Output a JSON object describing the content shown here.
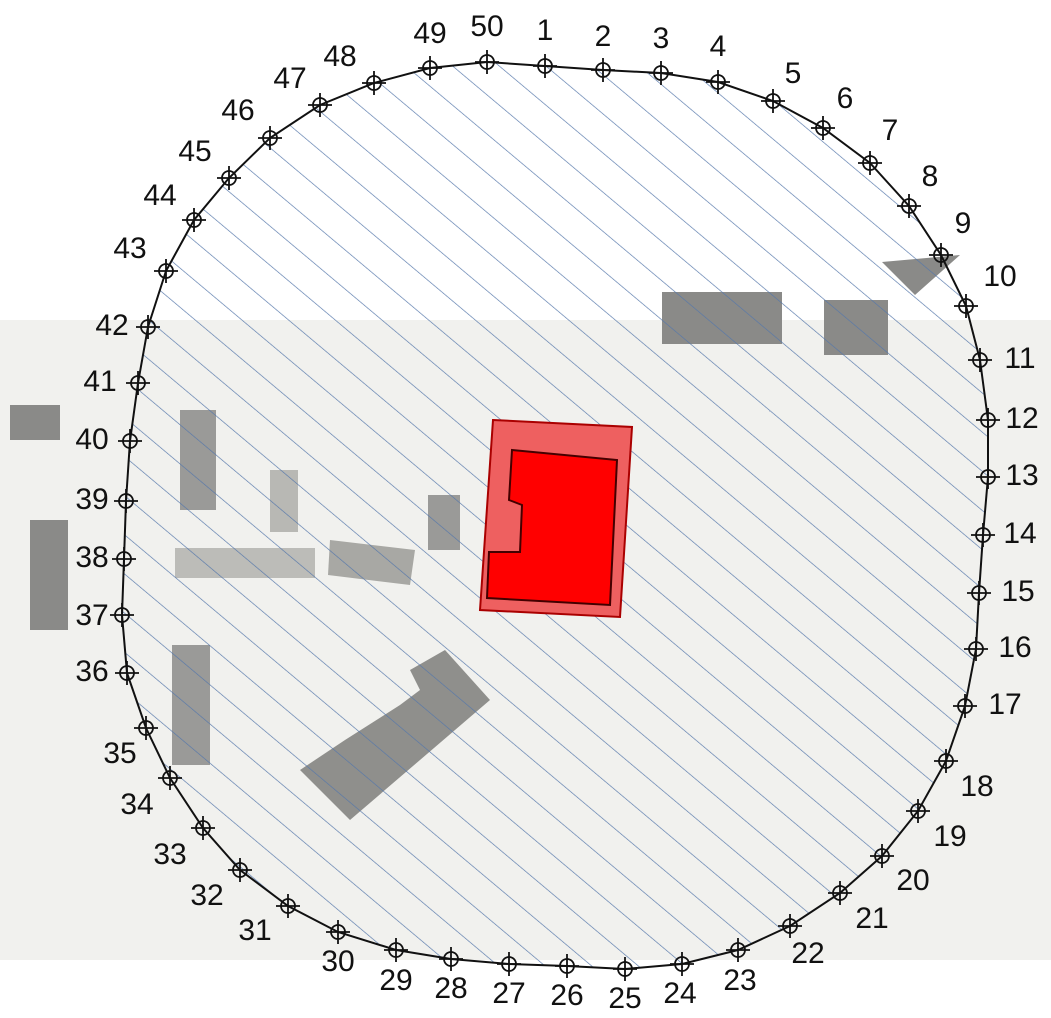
{
  "points": [
    "1",
    "2",
    "3",
    "4",
    "5",
    "6",
    "7",
    "8",
    "9",
    "10",
    "11",
    "12",
    "13",
    "14",
    "15",
    "16",
    "17",
    "18",
    "19",
    "20",
    "21",
    "22",
    "23",
    "24",
    "25",
    "26",
    "27",
    "28",
    "29",
    "30",
    "31",
    "32",
    "33",
    "34",
    "35",
    "36",
    "37",
    "38",
    "39",
    "40",
    "41",
    "42",
    "43",
    "44",
    "45",
    "46",
    "47",
    "48",
    "49",
    "50"
  ]
}
